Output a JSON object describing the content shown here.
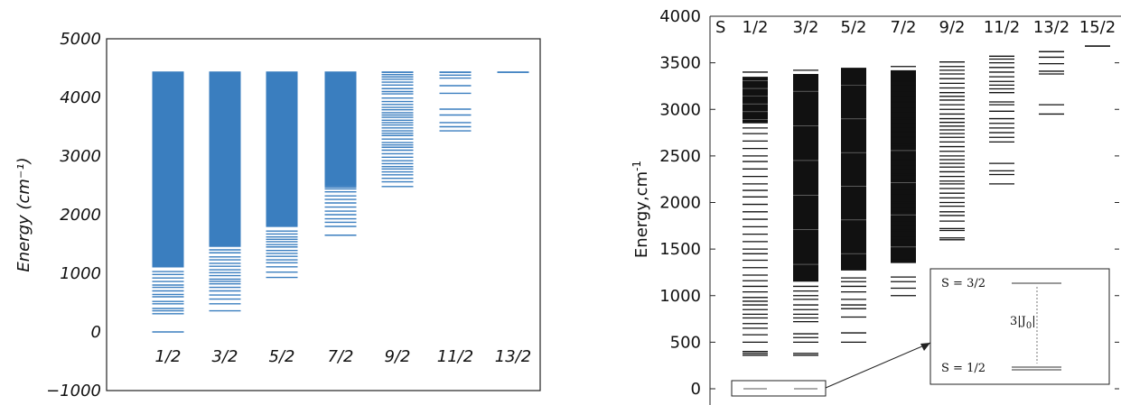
{
  "chart_data": [
    {
      "type": "scatter",
      "xlabel": "",
      "ylabel": "Energy (cm⁻¹)",
      "ylim": [
        -1000,
        5000
      ],
      "yticks": [
        "−1000",
        "0",
        "1000",
        "2000",
        "3000",
        "4000",
        "5000"
      ],
      "line_color": "#3a7ebf",
      "categories": [
        "1/2",
        "3/2",
        "5/2",
        "7/2",
        "9/2",
        "11/2",
        "13/2"
      ],
      "series": [
        {
          "label": "1/2",
          "dense_from": 1100,
          "top": 4430,
          "levels": [
            0,
            310,
            360,
            400,
            480,
            520,
            600,
            640,
            700,
            760,
            800,
            860,
            920,
            980,
            1030
          ]
        },
        {
          "label": "3/2",
          "dense_from": 1450,
          "top": 4430,
          "levels": [
            360,
            480,
            560,
            630,
            700,
            760,
            820,
            860,
            900,
            960,
            1010,
            1060,
            1120,
            1170,
            1230,
            1280,
            1350,
            1400
          ]
        },
        {
          "label": "5/2",
          "dense_from": 1790,
          "top": 4430,
          "levels": [
            930,
            1020,
            1110,
            1180,
            1230,
            1290,
            1340,
            1390,
            1450,
            1490,
            1540,
            1580,
            1620,
            1670,
            1720
          ]
        },
        {
          "label": "7/2",
          "dense_from": 2480,
          "top": 4430,
          "levels": [
            1650,
            1800,
            1870,
            1930,
            2000,
            2060,
            2130,
            2200,
            2260,
            2320,
            2390,
            2440,
            2470
          ]
        },
        {
          "label": "9/2",
          "dense_from": null,
          "top": 4430,
          "levels": [
            2480,
            2560,
            2620,
            2680,
            2730,
            2780,
            2820,
            2870,
            2920,
            2980,
            3040,
            3100,
            3150,
            3190,
            3230,
            3290,
            3350,
            3390,
            3430,
            3480,
            3530,
            3570,
            3610,
            3660,
            3700,
            3740,
            3790,
            3830,
            3880,
            3930,
            3990,
            4060,
            4100,
            4150,
            4210,
            4260,
            4310,
            4350,
            4390,
            4430
          ]
        },
        {
          "label": "11/2",
          "dense_from": null,
          "top": 4430,
          "levels": [
            3430,
            3500,
            3570,
            3700,
            3800,
            4070,
            4200,
            4330,
            4380,
            4430
          ]
        },
        {
          "label": "13/2",
          "dense_from": null,
          "top": 4430,
          "levels": [
            4430
          ]
        }
      ]
    },
    {
      "type": "scatter",
      "xlabel": "",
      "ylabel": "Energy,cm-1",
      "ylabel_main": "Energy,cm",
      "ylabel_sup": "-1",
      "ylim": [
        -200,
        4000
      ],
      "yticks": [
        "0",
        "500",
        "1000",
        "1500",
        "2000",
        "2500",
        "3000",
        "3500",
        "4000"
      ],
      "header_label": "S",
      "line_color": "#111111",
      "categories": [
        "1/2",
        "3/2",
        "5/2",
        "7/2",
        "9/2",
        "11/2",
        "13/2",
        "15/2"
      ],
      "series": [
        {
          "label": "1/2",
          "dense_from": 2850,
          "dense_to": 3350,
          "top": 3400,
          "levels": [
            0,
            360,
            380,
            400,
            500,
            580,
            650,
            700,
            760,
            800,
            850,
            900,
            940,
            980,
            1040,
            1100,
            1160,
            1220,
            1300,
            1380,
            1450,
            1500,
            1580,
            1660,
            1740,
            1820,
            1900,
            1980,
            2060,
            2130,
            2200,
            2280,
            2360,
            2440,
            2500,
            2580,
            2660,
            2740,
            2800
          ]
        },
        {
          "label": "3/2",
          "dense_from": 1150,
          "dense_to": 3380,
          "top": 3420,
          "levels": [
            0,
            360,
            380,
            500,
            550,
            590,
            720,
            760,
            800,
            850,
            900,
            960,
            1000,
            1050,
            1100
          ]
        },
        {
          "label": "5/2",
          "dense_from": 1270,
          "dense_to": 3440,
          "top": 3440,
          "levels": [
            500,
            600,
            770,
            860,
            900,
            960,
            1040,
            1100,
            1150,
            1190
          ]
        },
        {
          "label": "7/2",
          "dense_from": 1350,
          "dense_to": 3420,
          "top": 3460,
          "levels": [
            1000,
            1080,
            1150,
            1200,
            1380,
            1450,
            1500,
            1550,
            1600,
            1640,
            1700,
            1750,
            1800,
            1850,
            1900,
            1950,
            2000,
            2040,
            2090,
            2140,
            2200,
            2250,
            2300,
            2350,
            2400,
            2460,
            2520,
            2580,
            2620,
            2700,
            2760,
            2800,
            2850,
            2900,
            2960,
            3020,
            3080,
            3140,
            3200,
            3250,
            3300,
            3340
          ]
        },
        {
          "label": "9/2",
          "dense_from": null,
          "top": 3510,
          "levels": [
            1600,
            1620,
            1700,
            1720,
            1800,
            1860,
            1900,
            1960,
            2000,
            2050,
            2100,
            2150,
            2200,
            2230,
            2280,
            2330,
            2380,
            2420,
            2460,
            2500,
            2550,
            2600,
            2650,
            2700,
            2740,
            2780,
            2820,
            2860,
            2900,
            2950,
            3000,
            3050,
            3100,
            3140,
            3180,
            3230,
            3280,
            3330,
            3380,
            3420,
            3460,
            3510
          ]
        },
        {
          "label": "11/2",
          "dense_from": null,
          "top": 3570,
          "levels": [
            2200,
            2300,
            2340,
            2420,
            2650,
            2700,
            2750,
            2800,
            2850,
            2900,
            2980,
            3050,
            3080,
            3180,
            3220,
            3260,
            3300,
            3350,
            3400,
            3450,
            3500,
            3540,
            3570
          ]
        },
        {
          "label": "13/2",
          "dense_from": null,
          "top": 3620,
          "levels": [
            2950,
            3050,
            3380,
            3410,
            3490,
            3560,
            3620
          ]
        },
        {
          "label": "15/2",
          "dense_from": null,
          "top": 3680,
          "levels": [
            3680
          ]
        }
      ],
      "inset": {
        "upper_label": "S = 3/2",
        "lower_label": "S = 1/2",
        "gap_prefix": "3|J",
        "gap_sub": "0",
        "gap_suffix": "|"
      }
    }
  ]
}
